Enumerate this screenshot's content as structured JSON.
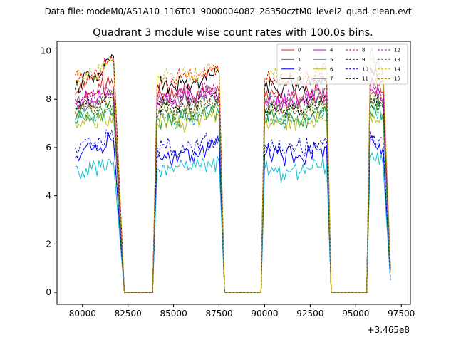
{
  "chart_data": {
    "type": "line",
    "suptitle": "Data file: modeM0/AS1A10_116T01_9000004082_28350cztM0_level2_quad_clean.evt",
    "title": "Quadrant 3 module wise count rates with 100.0s bins.",
    "xlabel": "",
    "ylabel": "",
    "x_offset_label": "+3.465e8",
    "xlim": [
      78600,
      98000
    ],
    "ylim": [
      -0.5,
      10.4
    ],
    "x_ticks": [
      80000,
      82500,
      85000,
      87500,
      90000,
      92500,
      95000,
      97500
    ],
    "x_tick_labels": [
      "80000",
      "82500",
      "85000",
      "87500",
      "90000",
      "92500",
      "95000",
      "97500"
    ],
    "y_ticks": [
      0,
      2,
      4,
      6,
      8,
      10
    ],
    "y_tick_labels": [
      "0",
      "2",
      "4",
      "6",
      "8",
      "10"
    ],
    "legend_location": "upper right",
    "gaps": [
      [
        81700,
        82300
      ],
      [
        83850,
        84100
      ],
      [
        87500,
        87800
      ],
      [
        89800,
        90000
      ],
      [
        93400,
        93650
      ],
      [
        95600,
        95800
      ]
    ],
    "zero_segments": [
      [
        82300,
        83850
      ],
      [
        87800,
        89800
      ],
      [
        93650,
        95600
      ]
    ],
    "x": [
      79600,
      80000,
      80500,
      81000,
      81500,
      81700,
      82300,
      83850,
      84100,
      84500,
      85000,
      85500,
      86000,
      86500,
      87000,
      87500,
      87800,
      89800,
      90000,
      90500,
      91000,
      91500,
      92000,
      92500,
      93000,
      93400,
      93650,
      95600,
      95800,
      96000,
      96500,
      96900
    ],
    "series": [
      {
        "name": "0",
        "color": "#d62728",
        "dash": "solid",
        "values": [
          8.2,
          8.4,
          8.3,
          8.5,
          8.6,
          8.5,
          0.0,
          0.0,
          8.0,
          8.2,
          8.1,
          8.3,
          8.2,
          8.4,
          8.5,
          8.3,
          0.0,
          0.0,
          8.1,
          8.2,
          8.0,
          8.3,
          8.1,
          8.2,
          8.4,
          8.3,
          0.0,
          0.0,
          8.5,
          8.6,
          8.3,
          1.0
        ]
      },
      {
        "name": "1",
        "color": "#2ca02c",
        "dash": "solid",
        "values": [
          7.0,
          7.3,
          7.2,
          7.4,
          7.6,
          7.5,
          0.0,
          0.0,
          7.2,
          7.1,
          7.3,
          7.2,
          7.4,
          7.3,
          7.5,
          7.4,
          0.0,
          0.0,
          7.1,
          7.2,
          7.0,
          7.3,
          7.1,
          7.2,
          7.3,
          7.3,
          0.0,
          0.0,
          7.5,
          7.7,
          7.4,
          0.9
        ]
      },
      {
        "name": "2",
        "color": "#0000ff",
        "dash": "solid",
        "values": [
          5.6,
          5.8,
          5.9,
          6.0,
          6.4,
          6.3,
          0.0,
          0.0,
          5.6,
          5.7,
          5.6,
          5.8,
          5.7,
          5.9,
          6.0,
          6.2,
          0.0,
          0.0,
          5.7,
          5.8,
          5.6,
          5.7,
          5.6,
          5.8,
          5.9,
          6.0,
          0.0,
          0.0,
          6.4,
          6.2,
          6.0,
          0.5
        ]
      },
      {
        "name": "3",
        "color": "#000000",
        "dash": "solid",
        "values": [
          8.4,
          8.8,
          8.9,
          9.0,
          9.6,
          9.8,
          0.0,
          0.0,
          8.6,
          8.7,
          8.5,
          8.8,
          8.6,
          8.7,
          9.0,
          9.1,
          0.0,
          0.0,
          8.5,
          8.6,
          8.4,
          8.7,
          8.5,
          8.6,
          8.8,
          8.9,
          0.0,
          0.0,
          9.3,
          9.0,
          8.8,
          1.1
        ]
      },
      {
        "name": "4",
        "color": "#c000c0",
        "dash": "solid",
        "values": [
          7.8,
          8.0,
          7.9,
          8.1,
          8.2,
          8.1,
          0.0,
          0.0,
          7.9,
          8.0,
          7.8,
          8.0,
          7.9,
          8.1,
          8.2,
          8.1,
          0.0,
          0.0,
          7.8,
          7.9,
          7.8,
          8.0,
          7.9,
          8.0,
          8.1,
          8.2,
          0.0,
          0.0,
          8.4,
          8.3,
          8.0,
          1.0
        ]
      },
      {
        "name": "5",
        "color": "#17becf",
        "dash": "solid",
        "values": [
          5.2,
          5.0,
          5.1,
          5.2,
          5.5,
          5.4,
          0.0,
          0.0,
          5.1,
          5.2,
          5.0,
          5.3,
          5.1,
          5.2,
          5.3,
          5.4,
          0.0,
          0.0,
          5.1,
          5.0,
          4.9,
          5.1,
          5.0,
          5.1,
          5.2,
          5.3,
          0.0,
          0.0,
          5.6,
          5.5,
          5.3,
          0.5
        ]
      },
      {
        "name": "6",
        "color": "#bcbd22",
        "dash": "solid",
        "values": [
          7.0,
          7.1,
          7.2,
          7.1,
          7.3,
          7.4,
          0.0,
          0.0,
          7.0,
          7.1,
          7.2,
          7.0,
          7.1,
          7.2,
          7.4,
          7.3,
          0.0,
          0.0,
          7.0,
          6.9,
          7.0,
          7.1,
          6.9,
          7.0,
          7.2,
          7.1,
          0.0,
          0.0,
          7.4,
          7.3,
          7.1,
          0.8
        ]
      },
      {
        "name": "7",
        "color": "#7f7f7f",
        "dash": "solid",
        "values": [
          7.8,
          7.9,
          8.0,
          8.1,
          8.3,
          8.2,
          0.0,
          0.0,
          7.9,
          8.0,
          7.9,
          8.1,
          8.0,
          8.1,
          8.3,
          8.2,
          0.0,
          0.0,
          7.9,
          8.0,
          7.8,
          8.0,
          7.9,
          8.0,
          8.1,
          8.2,
          0.0,
          0.0,
          9.9,
          9.6,
          9.0,
          1.0
        ]
      },
      {
        "name": "8",
        "color": "#ff0000",
        "dash": "dashed",
        "values": [
          9.0,
          8.9,
          9.0,
          9.2,
          9.6,
          9.5,
          0.0,
          0.0,
          8.7,
          8.9,
          8.8,
          9.0,
          8.9,
          9.0,
          9.3,
          9.2,
          0.0,
          0.0,
          8.8,
          8.9,
          8.7,
          9.0,
          8.8,
          8.9,
          9.1,
          9.2,
          0.0,
          0.0,
          9.4,
          9.2,
          9.0,
          1.1
        ]
      },
      {
        "name": "9",
        "color": "#008000",
        "dash": "dashed",
        "values": [
          7.4,
          7.6,
          7.5,
          7.7,
          7.9,
          7.8,
          0.0,
          0.0,
          7.5,
          7.6,
          7.4,
          7.6,
          7.5,
          7.7,
          7.8,
          7.7,
          0.0,
          0.0,
          7.4,
          7.5,
          7.3,
          7.6,
          7.4,
          7.5,
          7.7,
          7.8,
          0.0,
          0.0,
          8.0,
          7.9,
          7.6,
          0.9
        ]
      },
      {
        "name": "10",
        "color": "#0000cc",
        "dash": "dashed",
        "values": [
          6.0,
          6.2,
          6.1,
          6.3,
          6.5,
          6.4,
          0.0,
          0.0,
          6.0,
          6.1,
          5.9,
          6.1,
          6.0,
          6.2,
          6.3,
          6.5,
          0.0,
          0.0,
          6.1,
          6.0,
          5.9,
          6.1,
          6.0,
          6.1,
          6.2,
          6.3,
          0.0,
          0.0,
          6.7,
          6.5,
          6.3,
          0.6
        ]
      },
      {
        "name": "11",
        "color": "#000000",
        "dash": "dashed",
        "values": [
          7.6,
          7.8,
          7.7,
          7.9,
          8.1,
          8.0,
          0.0,
          0.0,
          7.7,
          7.8,
          7.6,
          7.8,
          7.7,
          7.9,
          8.0,
          7.9,
          0.0,
          0.0,
          7.6,
          7.7,
          7.5,
          7.8,
          7.6,
          7.7,
          7.9,
          8.0,
          0.0,
          0.0,
          8.2,
          8.0,
          7.8,
          0.9
        ]
      },
      {
        "name": "12",
        "color": "#cc00cc",
        "dash": "dashed",
        "values": [
          8.0,
          8.1,
          8.0,
          8.2,
          8.4,
          8.3,
          0.0,
          0.0,
          8.1,
          8.2,
          8.0,
          8.2,
          8.1,
          8.3,
          8.4,
          8.3,
          0.0,
          0.0,
          8.0,
          8.1,
          7.9,
          8.2,
          8.0,
          8.1,
          8.3,
          8.4,
          0.0,
          0.0,
          8.6,
          8.4,
          8.2,
          1.0
        ]
      },
      {
        "name": "13",
        "color": "#00aaaa",
        "dash": "dashed",
        "values": [
          7.2,
          7.3,
          7.2,
          7.4,
          7.5,
          7.4,
          0.0,
          0.0,
          7.2,
          7.3,
          7.1,
          7.3,
          7.2,
          7.4,
          7.5,
          7.4,
          0.0,
          0.0,
          7.1,
          7.2,
          7.0,
          7.3,
          7.1,
          7.2,
          7.4,
          7.5,
          0.0,
          0.0,
          7.7,
          7.6,
          7.3,
          0.8
        ]
      },
      {
        "name": "14",
        "color": "#c8c800",
        "dash": "dashed",
        "values": [
          8.8,
          9.0,
          9.1,
          9.2,
          9.8,
          9.7,
          0.0,
          0.0,
          9.0,
          9.1,
          8.9,
          9.2,
          9.0,
          9.1,
          9.4,
          9.3,
          0.0,
          0.0,
          8.9,
          9.0,
          8.8,
          9.1,
          8.9,
          9.0,
          9.2,
          9.3,
          0.0,
          0.0,
          9.6,
          9.4,
          9.2,
          1.1
        ]
      },
      {
        "name": "15",
        "color": "#8c6a00",
        "dash": "dashed",
        "values": [
          7.5,
          7.7,
          7.6,
          7.8,
          8.0,
          7.9,
          0.0,
          0.0,
          7.6,
          7.7,
          7.5,
          7.7,
          7.6,
          7.8,
          7.9,
          7.8,
          0.0,
          0.0,
          7.5,
          7.6,
          7.4,
          7.7,
          7.5,
          7.6,
          7.8,
          7.9,
          0.0,
          0.0,
          8.1,
          8.0,
          7.7,
          0.9
        ]
      }
    ]
  }
}
